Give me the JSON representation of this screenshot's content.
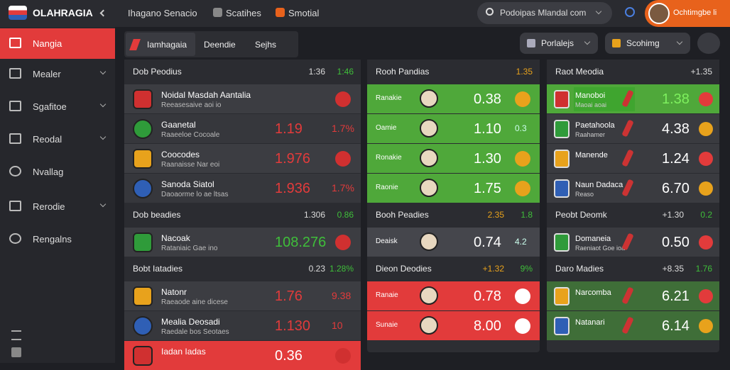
{
  "topbar": {
    "logo": "OLAHRAGIA",
    "nav": [
      "Ihagano Senacio",
      "Scatihes",
      "Smotial"
    ],
    "search": "Podoipas Mlandal com",
    "user": "Ochtimgbe li"
  },
  "sidebar": [
    "Nangia",
    "Mealer",
    "Sgafitoe",
    "Reodal",
    "Nvallag",
    "Rerodie",
    "Rengalns"
  ],
  "tabs": [
    "Iamhagaia",
    "Deendie",
    "Sejhs"
  ],
  "filters": [
    "Porlalejs",
    "Scohimg"
  ],
  "columns": [
    {
      "sections": [
        {
          "title": "Dob Peodius",
          "stats": [
            "1:36",
            "1:46"
          ],
          "rows": [
            {
              "name": "Noidal Masdah Aantalia",
              "sub": "Reeasesaive aoi io"
            },
            {
              "name": "Gaanetal",
              "sub": "Raaeeloe Cocoale",
              "values": [
                "1.19",
                "1.7%"
              ]
            },
            {
              "name": "Coocodes",
              "sub": "Raanaisse Nar eoi",
              "values": [
                "1.976"
              ]
            },
            {
              "name": "Sanoda Siatol",
              "sub": "Daoaorme lo ae ltsas",
              "values": [
                "1.936",
                "1.7%"
              ]
            }
          ]
        },
        {
          "title": "Dob beadies",
          "stats": [
            "1.306",
            "0.86"
          ],
          "rows": [
            {
              "name": "Nacoak",
              "sub": "Rataniaic Gae ino",
              "values": [
                "108.276"
              ],
              "color": "#3fbf3a"
            }
          ]
        },
        {
          "title": "Bobt Iatadies",
          "stats": [
            "0.23",
            "1.28%"
          ],
          "rows": [
            {
              "name": "Natonr",
              "sub": "Raeaode aine dicese",
              "values": [
                "1.76",
                "9.38"
              ]
            },
            {
              "name": "Mealia Deosadi",
              "sub": "Raedale bos Seotaes",
              "values": [
                "1.130",
                "10"
              ]
            },
            {
              "name": "Iadan Iadas",
              "sub": "",
              "values": [
                "0.36"
              ],
              "bg": "#e23b3b"
            }
          ]
        }
      ]
    },
    {
      "sections": [
        {
          "title": "Rooh Pandias",
          "stats": [
            "1.35"
          ],
          "rows": [
            {
              "name": "Ranakie",
              "value": "0.38",
              "bg": "#4fa83a"
            },
            {
              "name": "Oamie",
              "value": "1.10",
              "badge": "0.3",
              "bg": "#4fa83a"
            },
            {
              "name": "Ronakie",
              "value": "1.30",
              "bg": "#4fa83a"
            },
            {
              "name": "Raonie",
              "value": "1.75",
              "bg": "#4fa83a"
            }
          ]
        },
        {
          "title": "Booh Peadies",
          "stats": [
            "2.35",
            "1.8"
          ],
          "rows": [
            {
              "name": "Deaisk",
              "value": "0.74",
              "badge": "4.2",
              "bg": "#45464c"
            }
          ]
        },
        {
          "title": "Dieon Deodies",
          "stats": [
            "+1.32",
            "9%"
          ],
          "rows": [
            {
              "name": "Ranaie",
              "value": "0.78",
              "bg": "#e23b3b"
            },
            {
              "name": "Sunaie",
              "value": "8.00",
              "bg": "#e23b3b"
            }
          ]
        }
      ]
    },
    {
      "sections": [
        {
          "title": "Raot Meodia",
          "stats": [
            "+1.35"
          ],
          "rows": [
            {
              "name": "Manoboi",
              "sub": "Maoai aoai",
              "value": "1.38",
              "bg": "#4fa83a"
            },
            {
              "name": "Paetahoola",
              "sub": "Raahamer",
              "value": "4.38",
              "bg": "#3a3b40"
            },
            {
              "name": "Manende",
              "sub": "",
              "value": "1.24",
              "bg": "#3a3b40"
            },
            {
              "name": "Naun Dadaca",
              "sub": "Reaso",
              "value": "6.70",
              "bg": "#3a3b40"
            }
          ]
        },
        {
          "title": "Peobt Deomk",
          "stats": [
            "+1.30",
            "0.2"
          ],
          "rows": [
            {
              "name": "Domaneia",
              "sub": "Raeniaot Goe ioa",
              "value": "0.50",
              "bg": "#3a3b40"
            }
          ]
        },
        {
          "title": "Daro Madies",
          "stats": [
            "+8.35",
            "1.76"
          ],
          "rows": [
            {
              "name": "Narcomba",
              "sub": "",
              "value": "6.21",
              "bg": "#3f6e38"
            },
            {
              "name": "Natanari",
              "sub": "",
              "value": "6.14",
              "bg": "#3f6e38"
            }
          ]
        }
      ]
    }
  ]
}
